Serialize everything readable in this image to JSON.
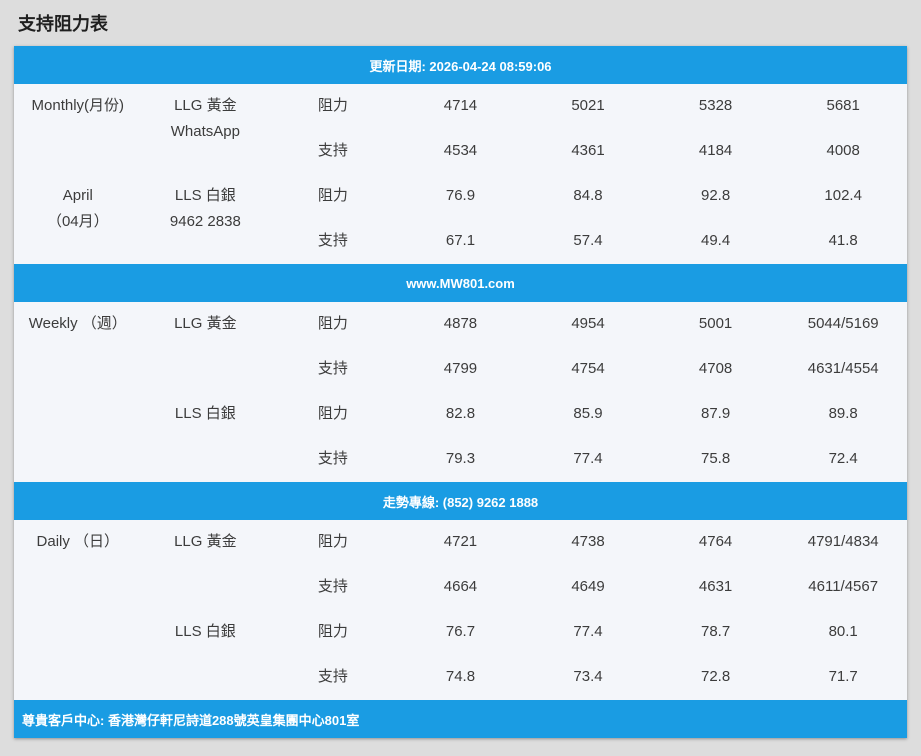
{
  "page": {
    "title": "支持阻力表"
  },
  "labels": {
    "resistance": "阻力",
    "support": "支持"
  },
  "colors": {
    "banner_blue": "#1A9CE3",
    "row_background": "#F4F6FA",
    "page_background": "#DDDDDD"
  },
  "sections": [
    {
      "banner": "更新日期: 2026-04-24 08:59:06",
      "groups": [
        {
          "period_lines": [
            "Monthly(月份)",
            ""
          ],
          "product_lines": [
            "LLG 黃金",
            "WhatsApp"
          ],
          "resistance": [
            "4714",
            "5021",
            "5328",
            "5681"
          ],
          "support": [
            "4534",
            "4361",
            "4184",
            "4008"
          ]
        },
        {
          "period_lines": [
            "April",
            "（04月）"
          ],
          "product_lines": [
            "LLS 白銀",
            "9462 2838"
          ],
          "resistance": [
            "76.9",
            "84.8",
            "92.8",
            "102.4"
          ],
          "support": [
            "67.1",
            "57.4",
            "49.4",
            "41.8"
          ]
        }
      ]
    },
    {
      "banner": "www.MW801.com",
      "groups": [
        {
          "period_lines": [
            "Weekly （週）",
            ""
          ],
          "product_lines": [
            "LLG 黃金",
            ""
          ],
          "resistance": [
            "4878",
            "4954",
            "5001",
            "5044/5169"
          ],
          "support": [
            "4799",
            "4754",
            "4708",
            "4631/4554"
          ]
        },
        {
          "period_lines": [
            "",
            ""
          ],
          "product_lines": [
            "LLS 白銀",
            ""
          ],
          "resistance": [
            "82.8",
            "85.9",
            "87.9",
            "89.8"
          ],
          "support": [
            "79.3",
            "77.4",
            "75.8",
            "72.4"
          ]
        }
      ]
    },
    {
      "banner": "走勢專線: (852) 9262 1888",
      "groups": [
        {
          "period_lines": [
            "Daily （日）",
            ""
          ],
          "product_lines": [
            "LLG 黃金",
            ""
          ],
          "resistance": [
            "4721",
            "4738",
            "4764",
            "4791/4834"
          ],
          "support": [
            "4664",
            "4649",
            "4631",
            "4611/4567"
          ]
        },
        {
          "period_lines": [
            "",
            ""
          ],
          "product_lines": [
            "LLS 白銀",
            ""
          ],
          "resistance": [
            "76.7",
            "77.4",
            "78.7",
            "80.1"
          ],
          "support": [
            "74.8",
            "73.4",
            "72.8",
            "71.7"
          ]
        }
      ]
    }
  ],
  "footer": "尊貴客戶中心: 香港灣仔軒尼詩道288號英皇集團中心801室"
}
